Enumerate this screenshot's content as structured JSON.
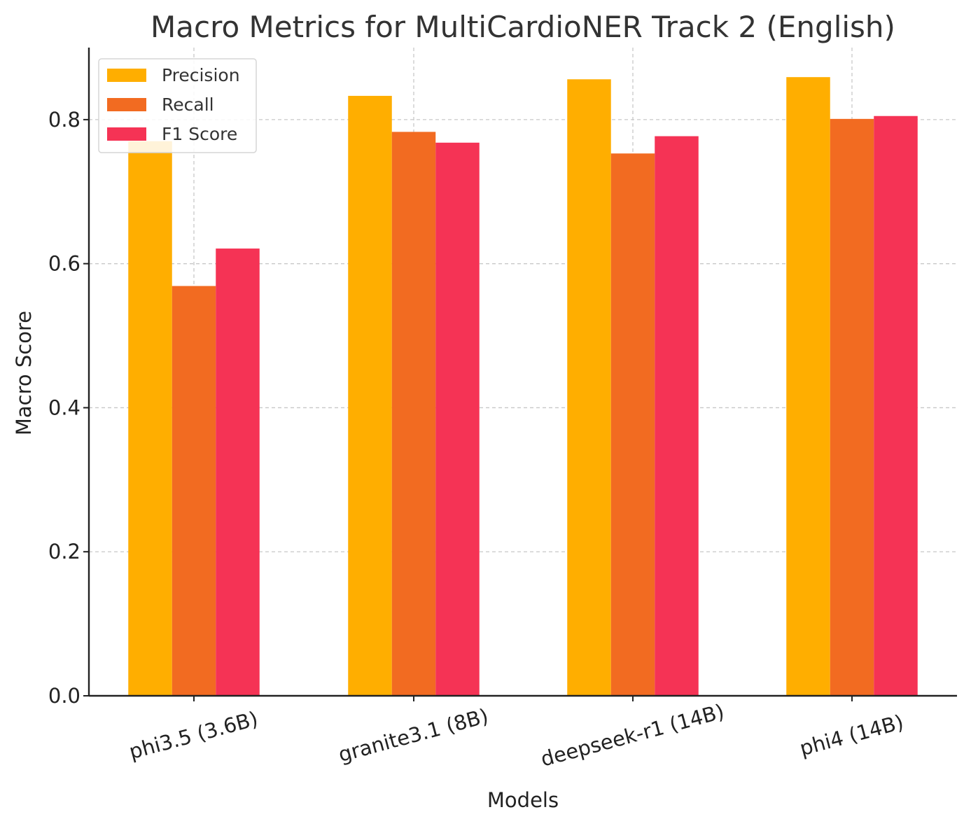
{
  "chart_data": {
    "type": "bar",
    "title": "Macro Metrics for MultiCardioNER Track 2 (English)",
    "xlabel": "Models",
    "ylabel": "Macro Score",
    "categories": [
      "phi3.5 (3.6B)",
      "granite3.1 (8B)",
      "deepseek-r1 (14B)",
      "phi4 (14B)"
    ],
    "series": [
      {
        "name": "Precision",
        "color": "#FFAE00",
        "values": [
          0.77,
          0.833,
          0.856,
          0.859
        ]
      },
      {
        "name": "Recall",
        "color": "#F26B21",
        "values": [
          0.569,
          0.783,
          0.753,
          0.801
        ]
      },
      {
        "name": "F1 Score",
        "color": "#F53355",
        "values": [
          0.621,
          0.768,
          0.777,
          0.805
        ]
      }
    ],
    "ylim": [
      0,
      0.9
    ],
    "yticks": [
      "0.0",
      "0.2",
      "0.4",
      "0.6",
      "0.8"
    ],
    "grid": true,
    "legend_position": "top-left",
    "xtick_rotation": "rotated"
  }
}
